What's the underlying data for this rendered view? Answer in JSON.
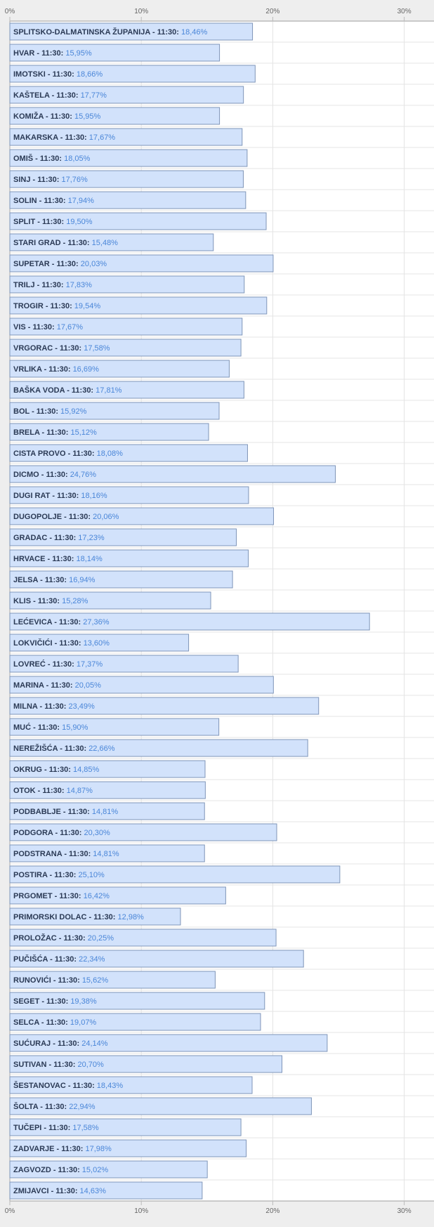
{
  "chart_data": {
    "type": "bar",
    "orientation": "horizontal",
    "time": "11:30",
    "x_ticks": [
      "0%",
      "10%",
      "20%",
      "30%"
    ],
    "x_tick_values": [
      0,
      10,
      20,
      30
    ],
    "xlim": [
      0,
      32.5
    ],
    "grid": true,
    "colors": {
      "bar_fill": "#d2e2fb",
      "bar_stroke": "#7f95b8",
      "value_text": "#4a86d8",
      "name_text": "#2b3a55"
    },
    "categories": [
      "SPLITSKO-DALMATINSKA ŽUPANIJA",
      "HVAR",
      "IMOTSKI",
      "KAŠTELA",
      "KOMIŽA",
      "MAKARSKA",
      "OMIŠ",
      "SINJ",
      "SOLIN",
      "SPLIT",
      "STARI GRAD",
      "SUPETAR",
      "TRILJ",
      "TROGIR",
      "VIS",
      "VRGORAC",
      "VRLIKA",
      "BAŠKA VODA",
      "BOL",
      "BRELA",
      "CISTA PROVO",
      "DICMO",
      "DUGI RAT",
      "DUGOPOLJE",
      "GRADAC",
      "HRVACE",
      "JELSA",
      "KLIS",
      "LEĆEVICA",
      "LOKVIČIĆI",
      "LOVREĆ",
      "MARINA",
      "MILNA",
      "MUĆ",
      "NEREŽIŠĆA",
      "OKRUG",
      "OTOK",
      "PODBABLJE",
      "PODGORA",
      "PODSTRANA",
      "POSTIRA",
      "PRGOMET",
      "PRIMORSKI DOLAC",
      "PROLOŽAC",
      "PUČIŠĆA",
      "RUNOVIĆI",
      "SEGET",
      "SELCA",
      "SUĆURAJ",
      "SUTIVAN",
      "ŠESTANOVAC",
      "ŠOLTA",
      "TUČEPI",
      "ZADVARJE",
      "ZAGVOZD",
      "ZMIJAVCI"
    ],
    "values": [
      18.46,
      15.95,
      18.66,
      17.77,
      15.95,
      17.67,
      18.05,
      17.76,
      17.94,
      19.5,
      15.48,
      20.03,
      17.83,
      19.54,
      17.67,
      17.58,
      16.69,
      17.81,
      15.92,
      15.12,
      18.08,
      24.76,
      18.16,
      20.06,
      17.23,
      18.14,
      16.94,
      15.28,
      27.36,
      13.6,
      17.37,
      20.05,
      23.49,
      15.9,
      22.66,
      14.85,
      14.87,
      14.81,
      20.3,
      14.81,
      25.1,
      16.42,
      12.98,
      20.25,
      22.34,
      15.62,
      19.38,
      19.07,
      24.14,
      20.7,
      18.43,
      22.94,
      17.58,
      17.98,
      15.02,
      14.63
    ],
    "value_labels": [
      "18,46%",
      "15,95%",
      "18,66%",
      "17,77%",
      "15,95%",
      "17,67%",
      "18,05%",
      "17,76%",
      "17,94%",
      "19,50%",
      "15,48%",
      "20,03%",
      "17,83%",
      "19,54%",
      "17,67%",
      "17,58%",
      "16,69%",
      "17,81%",
      "15,92%",
      "15,12%",
      "18,08%",
      "24,76%",
      "18,16%",
      "20,06%",
      "17,23%",
      "18,14%",
      "16,94%",
      "15,28%",
      "27,36%",
      "13,60%",
      "17,37%",
      "20,05%",
      "23,49%",
      "15,90%",
      "22,66%",
      "14,85%",
      "14,87%",
      "14,81%",
      "20,30%",
      "14,81%",
      "25,10%",
      "16,42%",
      "12,98%",
      "20,25%",
      "22,34%",
      "15,62%",
      "19,38%",
      "19,07%",
      "24,14%",
      "20,70%",
      "18,43%",
      "22,94%",
      "17,58%",
      "17,98%",
      "15,02%",
      "14,63%"
    ]
  }
}
